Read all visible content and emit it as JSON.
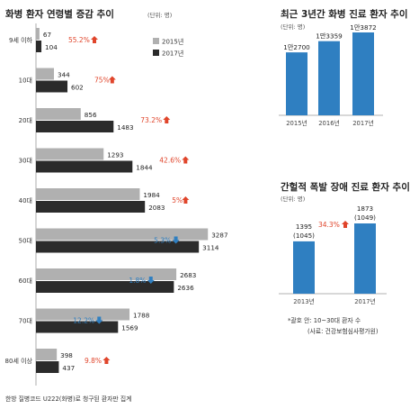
{
  "chart_data": [
    {
      "type": "bar",
      "title": "화병 환자 연령별 증감 추이",
      "unit": "(단위: 명)",
      "categories": [
        "9세 이하",
        "10대",
        "20대",
        "30대",
        "40대",
        "50대",
        "60대",
        "70대",
        "80세 이상"
      ],
      "series": [
        {
          "name": "2015년",
          "color": "#b0b0b0",
          "values": [
            67,
            344,
            856,
            1293,
            1984,
            3287,
            2683,
            1788,
            398
          ]
        },
        {
          "name": "2017년",
          "color": "#2b2b2b",
          "values": [
            104,
            602,
            1483,
            1844,
            2083,
            3114,
            2636,
            1569,
            437
          ]
        }
      ],
      "changes": [
        {
          "label": "55.2%",
          "direction": "up"
        },
        {
          "label": "75%",
          "direction": "up"
        },
        {
          "label": "73.2%",
          "direction": "up"
        },
        {
          "label": "42.6%",
          "direction": "up"
        },
        {
          "label": "5%",
          "direction": "up"
        },
        {
          "label": "5.3%",
          "direction": "down"
        },
        {
          "label": "1.8%",
          "direction": "down"
        },
        {
          "label": "12.2%",
          "direction": "down"
        },
        {
          "label": "9.8%",
          "direction": "up"
        }
      ],
      "xlim": [
        0,
        3300
      ],
      "legend": "top-right",
      "footnote": "한방 질병코드 U222(화병)로 청구된 환자만 집계"
    },
    {
      "type": "bar",
      "title": "최근 3년간 화병 진료 환자 추이",
      "unit": "(단위: 명)",
      "categories": [
        "2015년",
        "2016년",
        "2017년"
      ],
      "values": [
        12700,
        13359,
        13872
      ],
      "value_labels": [
        "1만2700",
        "1만3359",
        "1만3872"
      ],
      "color": "#2f7fc1"
    },
    {
      "type": "bar",
      "title": "간헐적 폭발 장애 진료 환자 추이",
      "unit": "(단위: 명)",
      "categories": [
        "2013년",
        "2017년"
      ],
      "values": [
        1395,
        1873
      ],
      "value_labels": [
        "1395",
        "1873"
      ],
      "sub_labels": [
        "(1045)",
        "(1049)"
      ],
      "change": {
        "label": "34.3%",
        "direction": "up"
      },
      "color": "#2f7fc1",
      "note": "*괄호 안: 10~30대 환자 수",
      "source": "(사료: 건강보험심사평가원)"
    }
  ],
  "colors": {
    "up": "#e0452b",
    "down": "#2f7fc1",
    "bar2015": "#b0b0b0",
    "bar2017": "#2b2b2b",
    "blue": "#2f7fc1"
  }
}
